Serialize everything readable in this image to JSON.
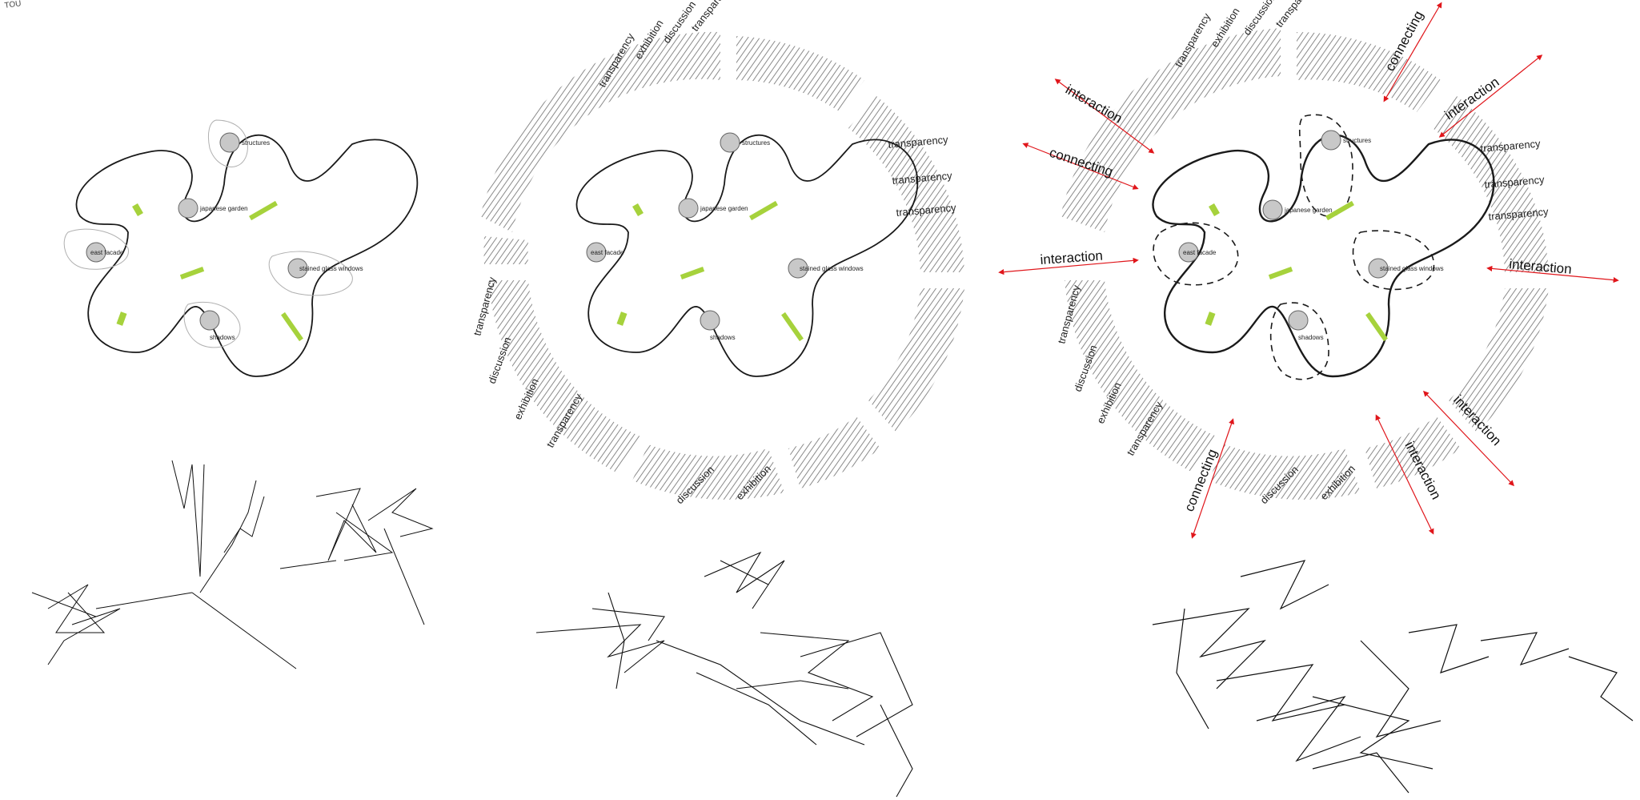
{
  "corner_label": "TOU",
  "nodes": {
    "structures": "structures",
    "japanese_garden": "japanese garden",
    "east_facade": "east facade",
    "stained_glass_windows": "stained glass windows",
    "shadows": "shadows"
  },
  "ring_words": {
    "transparency": "transparency",
    "discussion": "discussion",
    "exhibition": "exhibition"
  },
  "flow_words": {
    "interaction": "interaction",
    "connecting": "connecting"
  },
  "colors": {
    "line": "#1a1a1a",
    "node_fill": "#c8c8c8",
    "green_accent": "#a6d23c",
    "arrow_red": "#e0161b",
    "hatch": "#8a8a8a"
  }
}
